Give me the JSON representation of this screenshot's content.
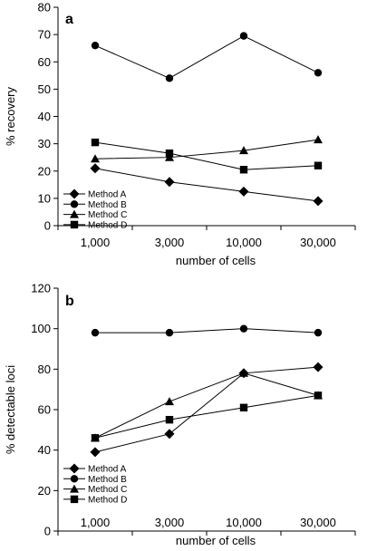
{
  "chart_data": [
    {
      "type": "line",
      "panel_label": "a",
      "categories": [
        "1,000",
        "3,000",
        "10,000",
        "30,000"
      ],
      "xlabel": "number of cells",
      "ylabel": "% recovery",
      "ylim": [
        0,
        80
      ],
      "yticks": [
        "0",
        "10",
        "20",
        "30",
        "40",
        "50",
        "60",
        "70",
        "80"
      ],
      "grid": false,
      "legend_position": "bottom-left",
      "series": [
        {
          "name": "Method A",
          "marker": "diamond",
          "values": [
            21,
            16,
            12.5,
            9
          ]
        },
        {
          "name": "Method B",
          "marker": "circle",
          "values": [
            66,
            54,
            69.5,
            56
          ]
        },
        {
          "name": "Method C",
          "marker": "triangle",
          "values": [
            24.5,
            25,
            27.5,
            31.5
          ]
        },
        {
          "name": "Method D",
          "marker": "square",
          "values": [
            30.5,
            26.5,
            20.5,
            22
          ]
        }
      ]
    },
    {
      "type": "line",
      "panel_label": "b",
      "categories": [
        "1,000",
        "3,000",
        "10,000",
        "30,000"
      ],
      "xlabel": "number of cells",
      "ylabel": "% detectable loci",
      "ylim": [
        0,
        120
      ],
      "yticks": [
        "0",
        "20",
        "40",
        "60",
        "80",
        "100",
        "120"
      ],
      "grid": false,
      "legend_position": "bottom-left",
      "series": [
        {
          "name": "Method A",
          "marker": "diamond",
          "values": [
            39,
            48,
            78,
            81
          ]
        },
        {
          "name": "Method B",
          "marker": "circle",
          "values": [
            98,
            98,
            100,
            98
          ]
        },
        {
          "name": "Method C",
          "marker": "triangle",
          "values": [
            46,
            64,
            78,
            67
          ]
        },
        {
          "name": "Method D",
          "marker": "square",
          "values": [
            46,
            55,
            61,
            67
          ]
        }
      ]
    }
  ]
}
